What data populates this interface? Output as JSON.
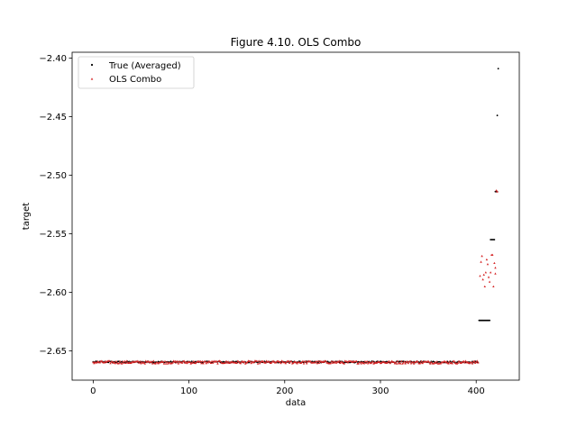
{
  "chart_data": {
    "type": "scatter",
    "title": "Figure 4.10. OLS Combo",
    "xlabel": "data",
    "ylabel": "target",
    "xlim": [
      -22,
      445
    ],
    "ylim": [
      -2.675,
      -2.395
    ],
    "xticks": [
      0,
      100,
      200,
      300,
      400
    ],
    "xtick_labels": [
      "0",
      "100",
      "200",
      "300",
      "400"
    ],
    "yticks": [
      -2.65,
      -2.6,
      -2.55,
      -2.5,
      -2.45,
      -2.4
    ],
    "ytick_labels": [
      "−2.65",
      "−2.60",
      "−2.55",
      "−2.50",
      "−2.45",
      "−2.40"
    ],
    "grid": false,
    "legend_position": "top-left",
    "series": [
      {
        "name": "True (Averaged)",
        "color": "#000000",
        "marker": "dot",
        "segments": [
          {
            "x_start": 0,
            "x_end": 402,
            "y": -2.6595,
            "noise": 0.0006
          },
          {
            "x_start": 403,
            "x_end": 414,
            "y": -2.624,
            "noise": 0
          },
          {
            "x_start": 415,
            "x_end": 419,
            "y": -2.555,
            "noise": 0
          },
          {
            "x_start": 420,
            "x_end": 422,
            "y": -2.514,
            "noise": 0
          }
        ],
        "extra_points": [
          {
            "x": 422,
            "y": -2.449
          },
          {
            "x": 423,
            "y": -2.409
          }
        ]
      },
      {
        "name": "OLS Combo",
        "color": "#d62728",
        "marker": "triangle",
        "segments": [
          {
            "x_start": 0,
            "x_end": 402,
            "y": -2.6597,
            "noise": 0.0012
          }
        ],
        "extra_points": [
          {
            "x": 404,
            "y": -2.586
          },
          {
            "x": 405,
            "y": -2.574
          },
          {
            "x": 406,
            "y": -2.569
          },
          {
            "x": 407,
            "y": -2.589
          },
          {
            "x": 408,
            "y": -2.585
          },
          {
            "x": 409,
            "y": -2.595
          },
          {
            "x": 410,
            "y": -2.583
          },
          {
            "x": 411,
            "y": -2.572
          },
          {
            "x": 412,
            "y": -2.576
          },
          {
            "x": 413,
            "y": -2.587
          },
          {
            "x": 414,
            "y": -2.591
          },
          {
            "x": 415,
            "y": -2.583
          },
          {
            "x": 416,
            "y": -2.568
          },
          {
            "x": 417,
            "y": -2.568
          },
          {
            "x": 418,
            "y": -2.595
          },
          {
            "x": 419,
            "y": -2.575
          },
          {
            "x": 420,
            "y": -2.579
          },
          {
            "x": 420,
            "y": -2.584
          },
          {
            "x": 421,
            "y": -2.513
          },
          {
            "x": 422,
            "y": -2.514
          }
        ]
      }
    ]
  }
}
